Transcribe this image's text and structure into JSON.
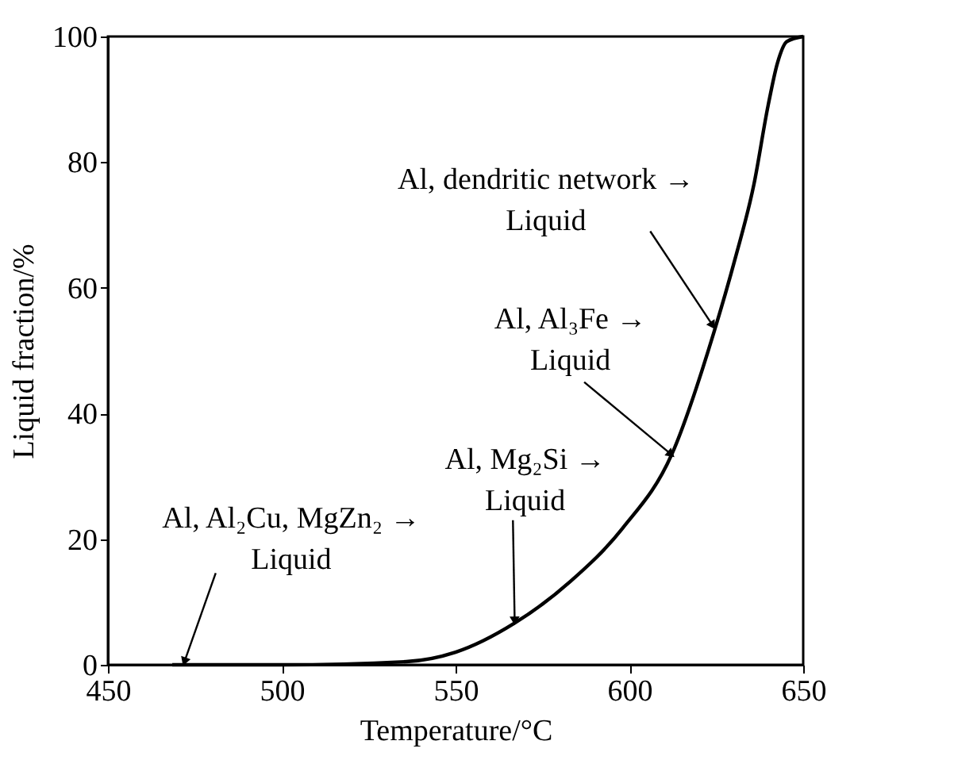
{
  "chart_data": {
    "type": "line",
    "xlabel": "Temperature/°C",
    "ylabel": "Liquid fraction/%",
    "x": [
      468.5,
      500,
      535.8,
      550,
      566.9,
      583.1,
      598,
      612.2,
      624.3,
      630.4,
      635.8,
      639.9,
      642.6,
      645.3,
      650
    ],
    "series": [
      {
        "color": "#000000",
        "values": [
          0,
          0,
          0.5,
          2,
          6.6,
          13.3,
          21.7,
          33.5,
          52.9,
          64.6,
          76.4,
          89,
          95.8,
          99.2,
          100
        ]
      }
    ],
    "xlim": [
      450,
      650
    ],
    "ylim": [
      0,
      100
    ],
    "xticks": [
      450,
      500,
      550,
      600,
      650
    ],
    "yticks": [
      0,
      20,
      40,
      60,
      80,
      100
    ],
    "grid": false,
    "marker": "none",
    "line_style": "solid",
    "annotations": [
      {
        "text": "Al, Al₂Cu, MgZn₂ →\nLiquid",
        "x": 472,
        "y": 0.5
      },
      {
        "text": "Al, Mg₂Si →\nLiquid",
        "x": 567,
        "y": 7
      },
      {
        "text": "Al, Al₃Fe →\nLiquid",
        "x": 612,
        "y": 33.5
      },
      {
        "text": "Al, dendritic network →\nLiquid",
        "x": 624,
        "y": 54
      }
    ]
  }
}
